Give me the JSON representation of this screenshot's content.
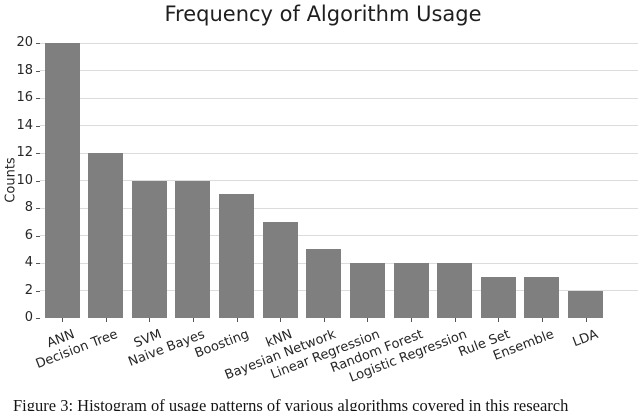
{
  "figure": {
    "caption": "Figure 3: Histogram of usage patterns of various algorithms covered in this research"
  },
  "chart_data": {
    "type": "bar",
    "title": "Frequency of Algorithm Usage",
    "xlabel": "",
    "ylabel": "Counts",
    "categories": [
      "ANN",
      "Decision Tree",
      "SVM",
      "Naive Bayes",
      "Boosting",
      "kNN",
      "Bayesian Network",
      "Linear Regression",
      "Random Forest",
      "Logistic Regression",
      "Rule Set",
      "Ensemble",
      "LDA"
    ],
    "values": [
      20,
      12,
      10,
      10,
      9,
      7,
      5,
      4,
      4,
      4,
      3,
      3,
      2
    ],
    "ylim": [
      0,
      20
    ],
    "yticks": [
      0,
      2,
      4,
      6,
      8,
      10,
      12,
      14,
      16,
      18,
      20
    ],
    "grid": "horizontal gridlines at every y tick, no axis spines",
    "legend": "none",
    "x_label_rotation_deg": 21,
    "colors": {
      "bar": "#7f7f7f",
      "gridline": "#dcdcdc",
      "text": "#262626",
      "tick_mark": "#555555",
      "background": "#ffffff"
    }
  }
}
